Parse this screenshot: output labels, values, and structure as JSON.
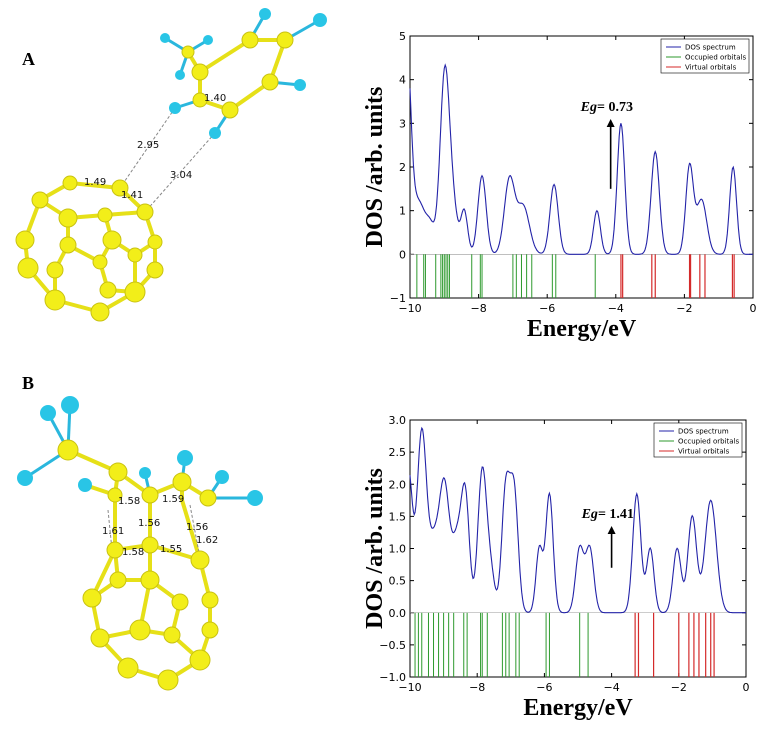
{
  "panels": {
    "a": {
      "letter": "A",
      "bond_labels": [
        "1.40",
        "2.95",
        "3.04",
        "1.49",
        "1.41"
      ]
    },
    "b": {
      "letter": "B",
      "bond_labels": [
        "1.58",
        "1.59",
        "1.56",
        "1.61",
        "1.56",
        "1.62",
        "1.58",
        "1.55"
      ]
    }
  },
  "colors": {
    "carbon_cage": "#f2ee19",
    "substituent": "#29c5e6",
    "dos_line": "#2323a8",
    "occupied": "#2e9a2e",
    "virtual": "#d42a2a"
  },
  "chart_data": [
    {
      "type": "line",
      "panel": "A",
      "xlabel": "Energy/eV",
      "ylabel": "DOS /arb. units",
      "xlim": [
        -10,
        0
      ],
      "ylim": [
        -1,
        5
      ],
      "xticks": [
        -10,
        -8,
        -6,
        -4,
        -2,
        0
      ],
      "yticks": [
        -1,
        0,
        1,
        2,
        3,
        4,
        5
      ],
      "ytick_labels": [
        "−1",
        "0",
        "1",
        "2",
        "3",
        "4",
        "5"
      ],
      "xtick_labels": [
        "−10",
        "−8",
        "−6",
        "−4",
        "−2",
        "0"
      ],
      "legend": [
        "DOS spectrum",
        "Occupied orbitals",
        "Virtual orbitals"
      ],
      "legend_position": "top-right",
      "eg_prefix": "Eg",
      "eg_value": "= 0.73",
      "eg_arrow_x": -4.15,
      "eg_arrow_y": [
        1.5,
        3.1
      ],
      "series": [
        {
          "name": "DOS spectrum",
          "peaks": [
            [
              -10.1,
              4.6,
              0.12
            ],
            [
              -9.75,
              1.2,
              0.2
            ],
            [
              -9.4,
              0.5,
              0.12
            ],
            [
              -8.98,
              4.25,
              0.14
            ],
            [
              -8.72,
              0.8,
              0.12
            ],
            [
              -8.42,
              1.0,
              0.1
            ],
            [
              -7.9,
              1.8,
              0.12
            ],
            [
              -7.1,
              1.7,
              0.15
            ],
            [
              -6.7,
              1.1,
              0.18
            ],
            [
              -5.8,
              1.6,
              0.12
            ],
            [
              -4.55,
              1.0,
              0.1
            ],
            [
              -3.85,
              3.0,
              0.11
            ],
            [
              -2.85,
              2.35,
              0.12
            ],
            [
              -1.85,
              2.0,
              0.11
            ],
            [
              -1.5,
              1.25,
              0.15
            ],
            [
              -0.58,
              2.0,
              0.1
            ]
          ]
        },
        {
          "name": "Occupied orbitals",
          "x": [
            -9.8,
            -9.6,
            -9.55,
            -9.25,
            -9.1,
            -9.05,
            -9.0,
            -8.95,
            -8.9,
            -8.85,
            -8.2,
            -7.95,
            -7.9,
            -7.0,
            -6.9,
            -6.75,
            -6.6,
            -6.45,
            -5.85,
            -5.75,
            -4.6
          ]
        },
        {
          "name": "Virtual orbitals",
          "x": [
            -3.85,
            -3.8,
            -2.95,
            -2.85,
            -1.85,
            -1.82,
            -1.55,
            -1.4,
            -0.6,
            -0.55
          ]
        }
      ]
    },
    {
      "type": "line",
      "panel": "B",
      "xlabel": "Energy/eV",
      "ylabel": "DOS /arb. units",
      "xlim": [
        -10,
        0
      ],
      "ylim": [
        -1.0,
        3.0
      ],
      "xticks": [
        -10,
        -8,
        -6,
        -4,
        -2,
        0
      ],
      "yticks": [
        -1.0,
        -0.5,
        0.0,
        0.5,
        1.0,
        1.5,
        2.0,
        2.5,
        3.0
      ],
      "ytick_labels": [
        "−1.0",
        "−0.5",
        "0.0",
        "0.5",
        "1.0",
        "1.5",
        "2.0",
        "2.5",
        "3.0"
      ],
      "xtick_labels": [
        "−10",
        "−8",
        "−6",
        "−4",
        "−2",
        "0"
      ],
      "legend": [
        "DOS spectrum",
        "Occupied orbitals",
        "Virtual orbitals"
      ],
      "legend_position": "top-right",
      "eg_prefix": "Eg",
      "eg_value": "= 1.41",
      "eg_arrow_x": -4.0,
      "eg_arrow_y": [
        0.7,
        1.35
      ],
      "series": [
        {
          "name": "DOS spectrum",
          "peaks": [
            [
              -10.05,
              2.2,
              0.12
            ],
            [
              -9.65,
              2.8,
              0.14
            ],
            [
              -9.3,
              1.0,
              0.15
            ],
            [
              -8.98,
              1.95,
              0.15
            ],
            [
              -8.6,
              1.1,
              0.15
            ],
            [
              -8.35,
              1.7,
              0.12
            ],
            [
              -7.85,
              2.2,
              0.13
            ],
            [
              -7.6,
              0.6,
              0.12
            ],
            [
              -7.15,
              1.9,
              0.12
            ],
            [
              -6.9,
              1.85,
              0.12
            ],
            [
              -6.15,
              1.0,
              0.1
            ],
            [
              -5.85,
              1.85,
              0.11
            ],
            [
              -4.95,
              1.0,
              0.12
            ],
            [
              -4.65,
              1.0,
              0.12
            ],
            [
              -3.25,
              1.85,
              0.12
            ],
            [
              -2.85,
              1.0,
              0.11
            ],
            [
              -2.05,
              1.0,
              0.12
            ],
            [
              -1.6,
              1.5,
              0.13
            ],
            [
              -1.05,
              1.75,
              0.17
            ]
          ]
        },
        {
          "name": "Occupied orbitals",
          "x": [
            -9.85,
            -9.75,
            -9.65,
            -9.45,
            -9.3,
            -9.15,
            -9.0,
            -8.85,
            -8.7,
            -8.4,
            -8.3,
            -7.9,
            -7.85,
            -7.7,
            -7.25,
            -7.15,
            -7.05,
            -6.85,
            -6.75,
            -5.95,
            -5.85,
            -4.95,
            -4.7
          ]
        },
        {
          "name": "Virtual orbitals",
          "x": [
            -3.3,
            -3.2,
            -2.75,
            -2.0,
            -1.7,
            -1.55,
            -1.4,
            -1.2,
            -1.05,
            -0.95
          ]
        }
      ]
    }
  ]
}
